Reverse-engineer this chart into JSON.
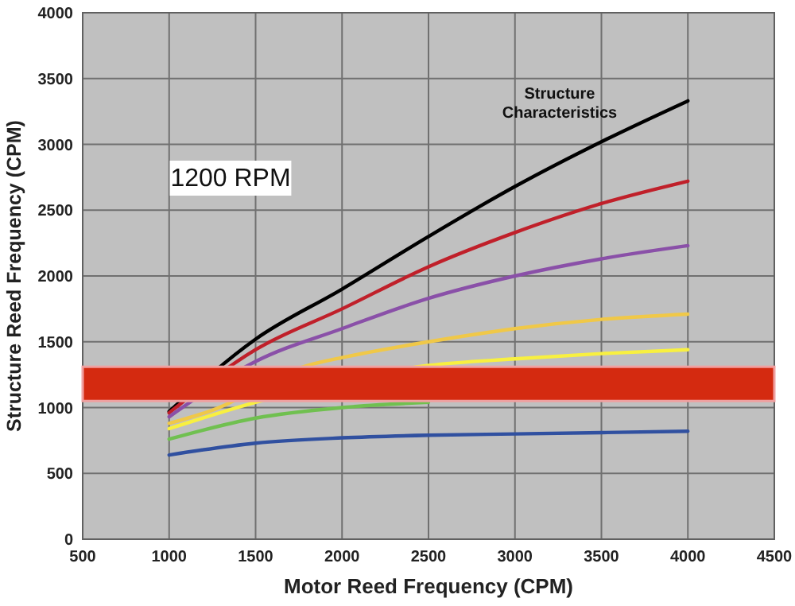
{
  "chart_data": {
    "type": "line",
    "xlabel": "Motor Reed Frequency (CPM)",
    "ylabel": "Structure Reed Frequency (CPM)",
    "x": [
      1000,
      1500,
      2000,
      2500,
      3000,
      3500,
      4000
    ],
    "series": [
      {
        "color": "#000000",
        "values": [
          970,
          1520,
          1900,
          2300,
          2680,
          3020,
          3330
        ]
      },
      {
        "color": "#c0202a",
        "values": [
          960,
          1440,
          1750,
          2070,
          2330,
          2550,
          2720
        ]
      },
      {
        "color": "#8a50a8",
        "values": [
          930,
          1350,
          1600,
          1830,
          2000,
          2130,
          2230
        ]
      },
      {
        "color": "#f0c848",
        "x": [
          1000,
          1250,
          1800,
          2000,
          2500,
          3000,
          3500,
          4000
        ],
        "values": [
          880,
          980,
          1320,
          1380,
          1500,
          1600,
          1670,
          1710
        ]
      },
      {
        "color": "#f8f040",
        "x": [
          1000,
          1500,
          2500,
          3000,
          3500,
          4000
        ],
        "values": [
          840,
          1040,
          1320,
          1370,
          1410,
          1440
        ]
      },
      {
        "color": "#70c050",
        "x": [
          1000,
          1500,
          2000,
          2500
        ],
        "values": [
          760,
          920,
          1000,
          1040
        ]
      },
      {
        "color": "#3050a0",
        "values": [
          640,
          730,
          770,
          790,
          800,
          810,
          820
        ]
      }
    ],
    "xlim": [
      500,
      4500
    ],
    "xticks": [
      500,
      1000,
      1500,
      2000,
      2500,
      3000,
      3500,
      4000,
      4500
    ],
    "ylim": [
      0,
      4000
    ],
    "yticks": [
      0,
      500,
      1000,
      1500,
      2000,
      2500,
      3000,
      3500,
      4000
    ],
    "grid": true,
    "marker": "none",
    "bands": [
      {
        "axis": "y",
        "from": 1050,
        "to": 1310,
        "color": "#d42a10"
      }
    ],
    "annotations": [
      "Structure Characteristics",
      "1200 RPM"
    ]
  }
}
